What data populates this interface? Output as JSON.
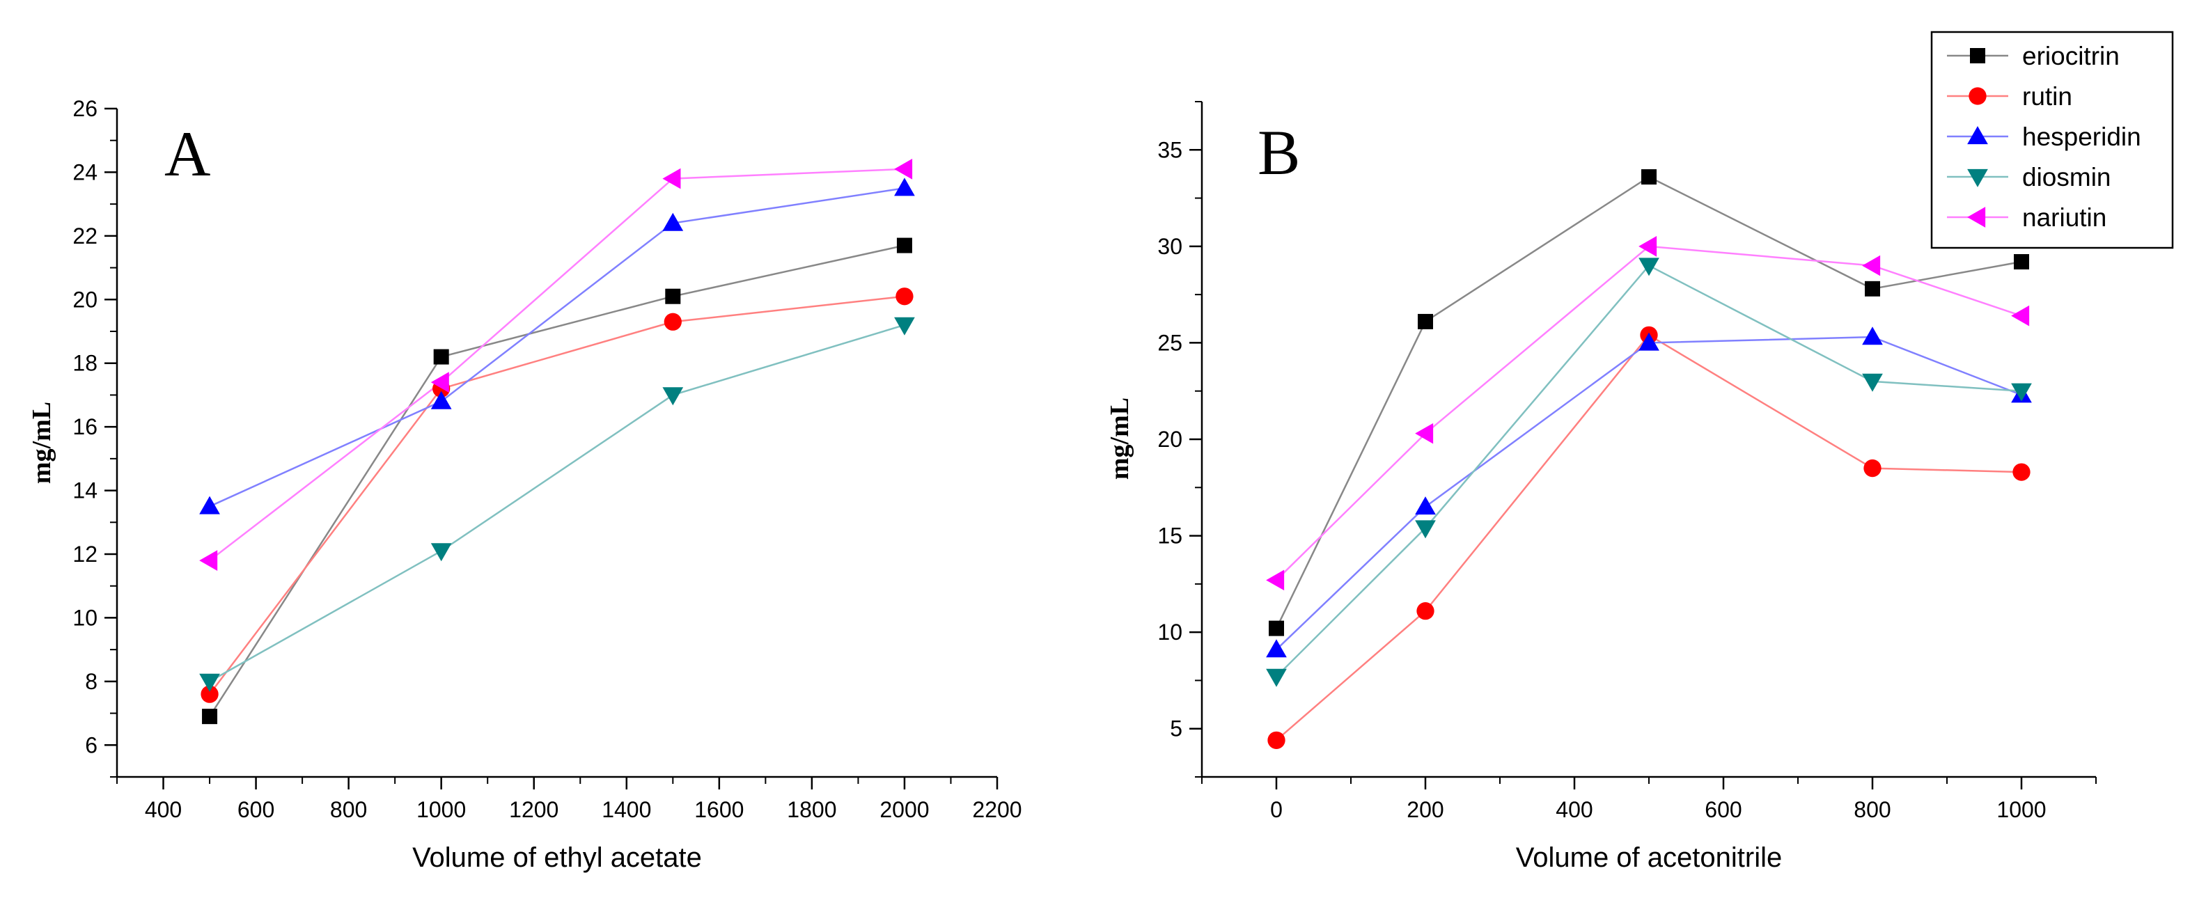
{
  "chart_data": [
    {
      "type": "line",
      "panel_label": "A",
      "xlabel": "Volume of ethyl acetate",
      "ylabel": "mg/mL",
      "xlim": [
        300,
        2200
      ],
      "ylim": [
        5,
        26
      ],
      "xticks": [
        400,
        600,
        800,
        1000,
        1200,
        1400,
        1600,
        1800,
        2000,
        2200
      ],
      "yticks": [
        6,
        8,
        10,
        12,
        14,
        16,
        18,
        20,
        22,
        24,
        26
      ],
      "x": [
        500,
        1000,
        1500,
        2000
      ],
      "series": [
        {
          "name": "eriocitrin",
          "color": "#000000",
          "line": "#888888",
          "marker": "square",
          "values": [
            6.9,
            18.2,
            20.1,
            21.7
          ]
        },
        {
          "name": "rutin",
          "color": "#ff0000",
          "line": "#ff8080",
          "marker": "circle",
          "values": [
            7.6,
            17.2,
            19.3,
            20.1
          ]
        },
        {
          "name": "hesperidin",
          "color": "#0000ff",
          "line": "#8080ff",
          "marker": "triangle-up",
          "values": [
            13.5,
            16.8,
            22.4,
            23.5
          ]
        },
        {
          "name": "diosmin",
          "color": "#008080",
          "line": "#80c0c0",
          "marker": "triangle-down",
          "values": [
            8.0,
            12.1,
            17.0,
            19.2
          ]
        },
        {
          "name": "nariutin",
          "color": "#ff00ff",
          "line": "#ff80ff",
          "marker": "triangle-left",
          "values": [
            11.8,
            17.4,
            23.8,
            24.1
          ]
        }
      ]
    },
    {
      "type": "line",
      "panel_label": "B",
      "xlabel": "Volume of acetonitrile",
      "ylabel": "mg/mL",
      "xlim": [
        -100,
        1100
      ],
      "ylim": [
        2.5,
        37.5
      ],
      "xticks": [
        0,
        200,
        400,
        600,
        800,
        1000
      ],
      "yticks": [
        5,
        10,
        15,
        20,
        25,
        30,
        35
      ],
      "x": [
        0,
        200,
        500,
        800,
        1000
      ],
      "legend_position": "top-right",
      "series": [
        {
          "name": "eriocitrin",
          "color": "#000000",
          "line": "#888888",
          "marker": "square",
          "values": [
            10.2,
            26.1,
            33.6,
            27.8,
            29.2
          ]
        },
        {
          "name": "rutin",
          "color": "#ff0000",
          "line": "#ff8080",
          "marker": "circle",
          "values": [
            4.4,
            11.1,
            25.4,
            18.5,
            18.3
          ]
        },
        {
          "name": "hesperidin",
          "color": "#0000ff",
          "line": "#8080ff",
          "marker": "triangle-up",
          "values": [
            9.1,
            16.5,
            25.0,
            25.3,
            22.3
          ]
        },
        {
          "name": "diosmin",
          "color": "#008080",
          "line": "#80c0c0",
          "marker": "triangle-down",
          "values": [
            7.7,
            15.4,
            29.0,
            23.0,
            22.5
          ]
        },
        {
          "name": "nariutin",
          "color": "#ff00ff",
          "line": "#ff80ff",
          "marker": "triangle-left",
          "values": [
            12.7,
            20.3,
            30.0,
            29.0,
            26.4
          ]
        }
      ]
    }
  ]
}
